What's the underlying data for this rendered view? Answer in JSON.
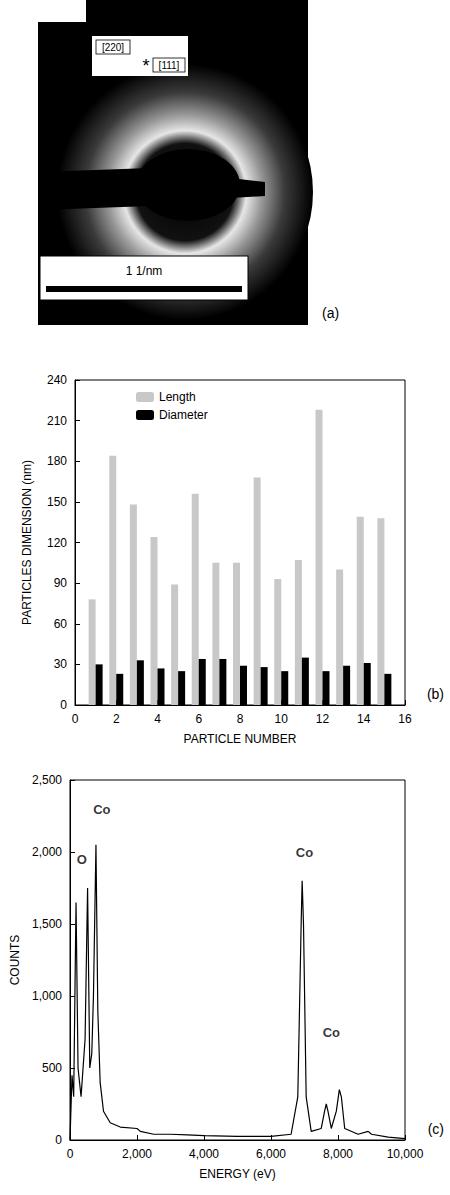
{
  "chart_data": [
    {
      "type": "image",
      "panel": "(a)",
      "annotations": [
        "[220]",
        "*",
        "[111]"
      ],
      "scale_bar": "1 1/nm"
    },
    {
      "type": "bar",
      "panel": "(b)",
      "x": [
        1,
        2,
        3,
        4,
        5,
        6,
        7,
        8,
        9,
        10,
        11,
        12,
        13,
        14,
        15
      ],
      "series": [
        {
          "name": "Length",
          "color": "#c8c8c8",
          "values": [
            78,
            184,
            148,
            124,
            89,
            156,
            105,
            105,
            168,
            93,
            107,
            218,
            100,
            139,
            138
          ]
        },
        {
          "name": "Diameter",
          "color": "#000000",
          "values": [
            30,
            23,
            33,
            27,
            25,
            34,
            34,
            29,
            28,
            25,
            35,
            25,
            29,
            31,
            23
          ]
        }
      ],
      "xlabel": "PARTICLE NUMBER",
      "ylabel": "PARTICLES DIMENSION (nm)",
      "xlim": [
        0,
        16
      ],
      "xticks": [
        0,
        2,
        4,
        6,
        8,
        10,
        12,
        14,
        16
      ],
      "ylim": [
        0,
        240
      ],
      "yticks": [
        0,
        30,
        60,
        90,
        120,
        150,
        180,
        210,
        240
      ],
      "legend": "upper left"
    },
    {
      "type": "line",
      "panel": "(c)",
      "x": [
        0,
        60,
        110,
        180,
        240,
        330,
        450,
        525,
        590,
        650,
        700,
        775,
        830,
        900,
        1000,
        1200,
        1500,
        2000,
        2100,
        2500,
        3000,
        3500,
        4000,
        5000,
        6000,
        6600,
        6800,
        6900,
        6930,
        6970,
        7050,
        7200,
        7500,
        7600,
        7650,
        7700,
        7800,
        7950,
        8040,
        8100,
        8200,
        8600,
        8900,
        9000,
        9500,
        10000
      ],
      "series": [
        {
          "color": "#000000",
          "values": [
            0,
            450,
            300,
            1650,
            500,
            300,
            700,
            1750,
            500,
            600,
            1000,
            2050,
            900,
            400,
            200,
            120,
            90,
            80,
            60,
            40,
            40,
            35,
            30,
            25,
            25,
            40,
            300,
            1500,
            1800,
            1500,
            300,
            60,
            80,
            200,
            250,
            200,
            80,
            200,
            350,
            300,
            80,
            40,
            60,
            40,
            20,
            10
          ]
        }
      ],
      "annotations": [
        {
          "text": "O",
          "x": 350,
          "y": 1900
        },
        {
          "text": "Co",
          "x": 950,
          "y": 2250
        },
        {
          "text": "Co",
          "x": 7000,
          "y": 1950
        },
        {
          "text": "Co",
          "x": 7800,
          "y": 700
        }
      ],
      "xlabel": "ENERGY (eV)",
      "ylabel": "COUNTS",
      "xlim": [
        0,
        10000
      ],
      "xticks": [
        0,
        2000,
        4000,
        6000,
        8000,
        10000
      ],
      "ylim": [
        0,
        2500
      ],
      "yticks": [
        0,
        500,
        1000,
        1500,
        2000,
        2500
      ]
    }
  ]
}
